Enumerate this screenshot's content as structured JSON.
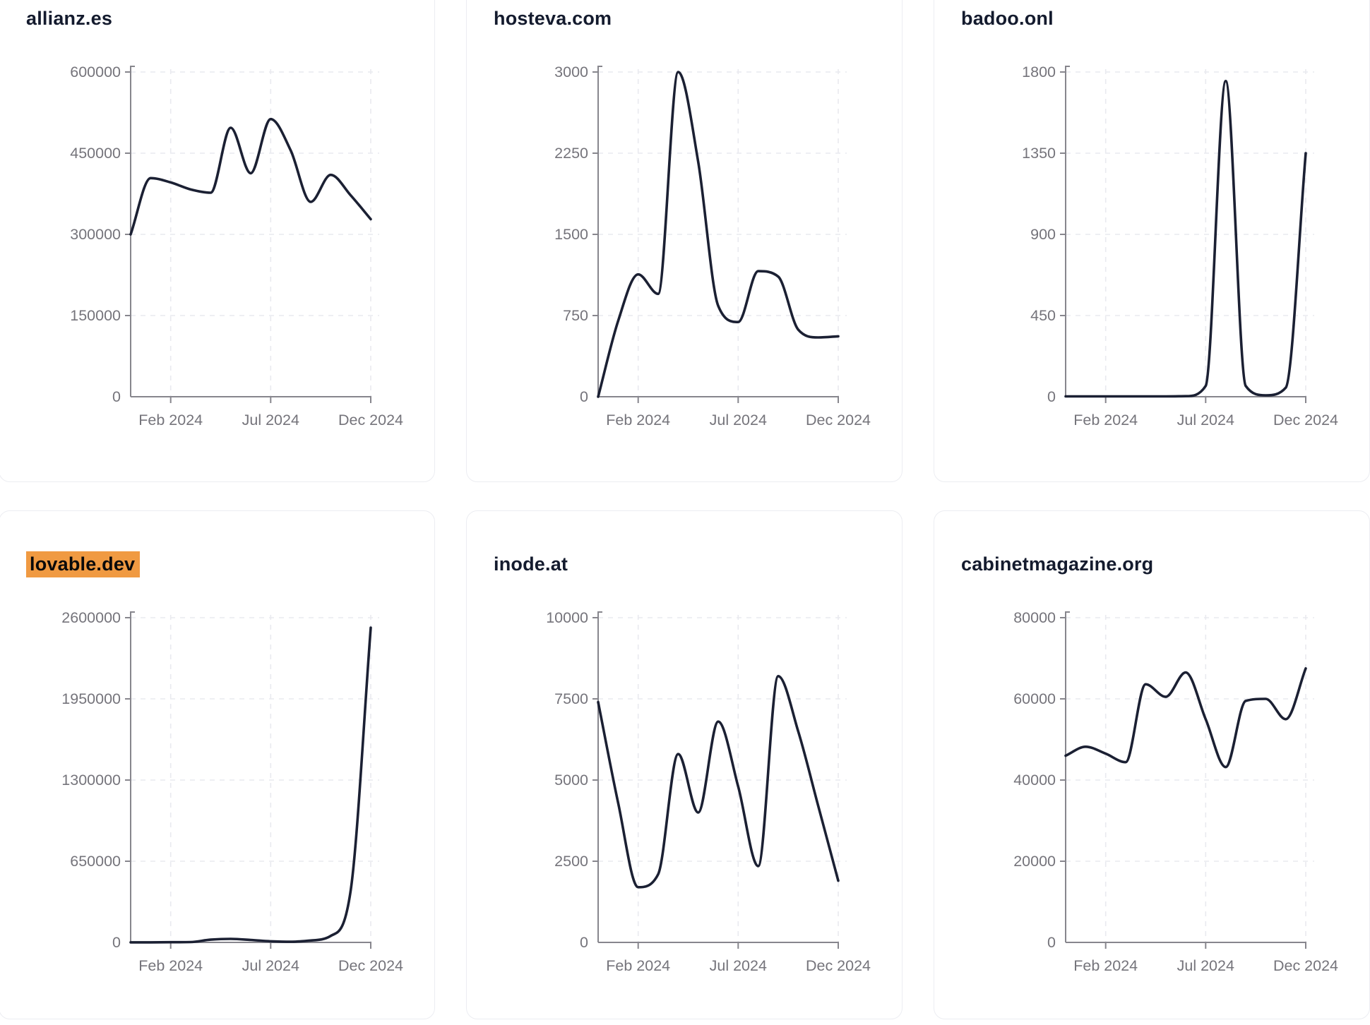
{
  "style": {
    "line_color": "#1b2033",
    "title_color": "#141b2e",
    "highlight_color": "#f09a42",
    "axis_text_color": "#75747b",
    "axis_line_color": "#87868d",
    "grid_color": "#e9eaef",
    "card_border_color": "#ecedf2",
    "card_bg": "#ffffff"
  },
  "x_axis": {
    "tick_labels": [
      "Feb 2024",
      "Jul 2024",
      "Dec 2024"
    ],
    "tick_positions": [
      2,
      7,
      12
    ],
    "domain_months": 12
  },
  "chart_data": [
    {
      "type": "line",
      "title": "allianz.es",
      "highlighted": false,
      "ylim": [
        0,
        600000
      ],
      "y_ticks": [
        0,
        150000,
        300000,
        450000,
        600000
      ],
      "x": [
        0,
        1,
        2,
        3,
        4,
        5,
        6,
        7,
        8,
        9,
        10,
        11,
        12
      ],
      "values": [
        300000,
        404000,
        396000,
        383000,
        377000,
        497000,
        413000,
        513000,
        455000,
        360000,
        410000,
        372000,
        328000
      ]
    },
    {
      "type": "line",
      "title": "hosteva.com",
      "highlighted": false,
      "ylim": [
        0,
        3000
      ],
      "y_ticks": [
        0,
        750,
        1500,
        2250,
        3000
      ],
      "x": [
        0,
        1,
        2,
        3,
        4,
        5,
        6,
        7,
        8,
        9,
        10,
        11,
        12
      ],
      "values": [
        0,
        700,
        1130,
        950,
        3000,
        2170,
        840,
        690,
        1160,
        1110,
        620,
        548,
        558
      ]
    },
    {
      "type": "line",
      "title": "badoo.onl",
      "highlighted": false,
      "ylim": [
        0,
        1800
      ],
      "y_ticks": [
        0,
        450,
        900,
        1350,
        1800
      ],
      "x": [
        0,
        1,
        2,
        3,
        4,
        5,
        6,
        7,
        8,
        9,
        10,
        11,
        12
      ],
      "values": [
        2,
        2,
        2,
        2,
        2,
        2,
        3,
        60,
        1750,
        60,
        8,
        50,
        1350
      ]
    },
    {
      "type": "line",
      "title": "lovable.dev",
      "highlighted": true,
      "ylim": [
        0,
        2600000
      ],
      "y_ticks": [
        0,
        650000,
        1300000,
        1950000,
        2600000
      ],
      "x": [
        0,
        1,
        2,
        3,
        4,
        5,
        6,
        7,
        8,
        9,
        10,
        11,
        12
      ],
      "values": [
        500,
        800,
        1500,
        3000,
        22000,
        28000,
        20000,
        9000,
        5000,
        15000,
        52000,
        420000,
        2520000
      ]
    },
    {
      "type": "line",
      "title": "inode.at",
      "highlighted": false,
      "ylim": [
        0,
        10000
      ],
      "y_ticks": [
        0,
        2500,
        5000,
        7500,
        10000
      ],
      "x": [
        0,
        1,
        2,
        3,
        4,
        5,
        6,
        7,
        8,
        9,
        10,
        11,
        12
      ],
      "values": [
        7400,
        4300,
        1700,
        2100,
        5800,
        4000,
        6800,
        4800,
        2350,
        8200,
        6500,
        4200,
        1900
      ]
    },
    {
      "type": "line",
      "title": "cabinetmagazine.org",
      "highlighted": false,
      "ylim": [
        0,
        80000
      ],
      "y_ticks": [
        0,
        20000,
        40000,
        60000,
        80000
      ],
      "x": [
        0,
        1,
        2,
        3,
        4,
        5,
        6,
        7,
        8,
        9,
        10,
        11,
        12
      ],
      "values": [
        46000,
        48200,
        46500,
        44400,
        63600,
        60500,
        66500,
        55000,
        43200,
        59500,
        60000,
        55000,
        67500
      ]
    }
  ]
}
